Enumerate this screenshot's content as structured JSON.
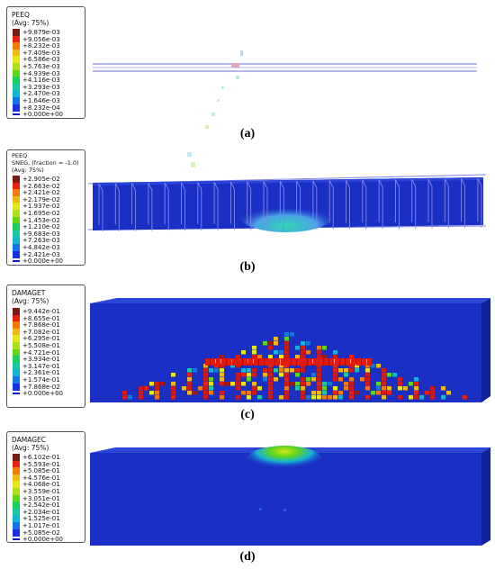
{
  "panels": [
    {
      "caption": "(a)",
      "legend": {
        "title": [
          "PEEQ",
          "(Avg: 75%)"
        ],
        "values": [
          "+9.879e-03",
          "+9.056e-03",
          "+8.232e-03",
          "+7.409e-03",
          "+6.586e-03",
          "+5.763e-03",
          "+4.939e-03",
          "+4.116e-03",
          "+3.293e-03",
          "+2.470e-03",
          "+1.646e-03",
          "+8.232e-04",
          "+0.000e+00"
        ]
      }
    },
    {
      "caption": "(b)",
      "legend": {
        "title": [
          "PEEQ",
          "SNEG, (fraction = -1.0)",
          "(Avg: 75%)"
        ],
        "values": [
          "+2.905e-02",
          "+2.663e-02",
          "+2.421e-02",
          "+2.179e-02",
          "+1.937e-02",
          "+1.695e-02",
          "+1.453e-02",
          "+1.210e-02",
          "+9.683e-03",
          "+7.263e-03",
          "+4.842e-03",
          "+2.421e-03",
          "+0.000e+00"
        ]
      }
    },
    {
      "caption": "(c)",
      "legend": {
        "title": [
          "DAMAGET",
          "(Avg: 75%)"
        ],
        "values": [
          "+9.442e-01",
          "+8.655e-01",
          "+7.868e-01",
          "+7.082e-01",
          "+6.295e-01",
          "+5.508e-01",
          "+4.721e-01",
          "+3.934e-01",
          "+3.147e-01",
          "+2.361e-01",
          "+1.574e-01",
          "+7.868e-02",
          "+0.000e+00"
        ]
      }
    },
    {
      "caption": "(d)",
      "legend": {
        "title": [
          "DAMAGEC",
          "(Avg: 75%)"
        ],
        "values": [
          "+6.102e-01",
          "+5.593e-01",
          "+5.085e-01",
          "+4.576e-01",
          "+4.068e-01",
          "+3.559e-01",
          "+3.051e-01",
          "+2.542e-01",
          "+2.034e-01",
          "+1.525e-01",
          "+1.017e-01",
          "+5.085e-02",
          "+0.000e+00"
        ]
      }
    }
  ],
  "colors": {
    "scale": [
      "#7a1b12",
      "#e8210d",
      "#f07a10",
      "#f0b814",
      "#e6e619",
      "#a9e019",
      "#5fd51c",
      "#1ecc5a",
      "#19c9a6",
      "#17b3d6",
      "#1575e1",
      "#1431e0",
      "#1212c8"
    ],
    "beam": "#1a2fc4",
    "beam_dark": "#10229a",
    "rebar": "#7d82e0"
  }
}
